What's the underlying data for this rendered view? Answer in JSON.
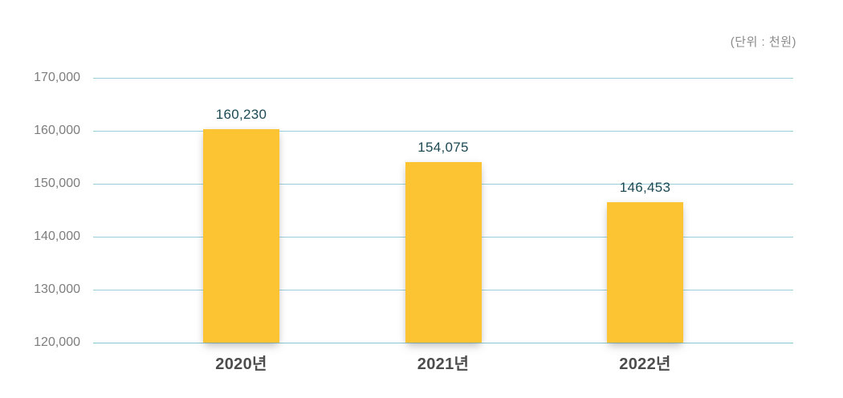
{
  "chart_data": {
    "type": "bar",
    "title": "",
    "unit_label": "(단위 : 천원)",
    "categories": [
      "2020년",
      "2021년",
      "2022년"
    ],
    "values": [
      160230,
      154075,
      146453
    ],
    "value_labels": [
      "160,230",
      "154,075",
      "146,453"
    ],
    "y_tick_values": [
      170000,
      160000,
      150000,
      140000,
      130000,
      120000
    ],
    "y_tick_labels": [
      "170,000",
      "160,000",
      "150,000",
      "140,000",
      "130,000",
      "120,000"
    ],
    "ylim": [
      120000,
      170000
    ],
    "grid": true,
    "legend": "none",
    "colors": {
      "bar": "#fcc433",
      "gridline": "#9acfda",
      "value_label": "#1c4a54",
      "y_tick_label": "#7d7d7d",
      "x_tick_label": "#4d4d4d",
      "unit_label": "#8a8a8a",
      "background": "#ffffff"
    }
  }
}
